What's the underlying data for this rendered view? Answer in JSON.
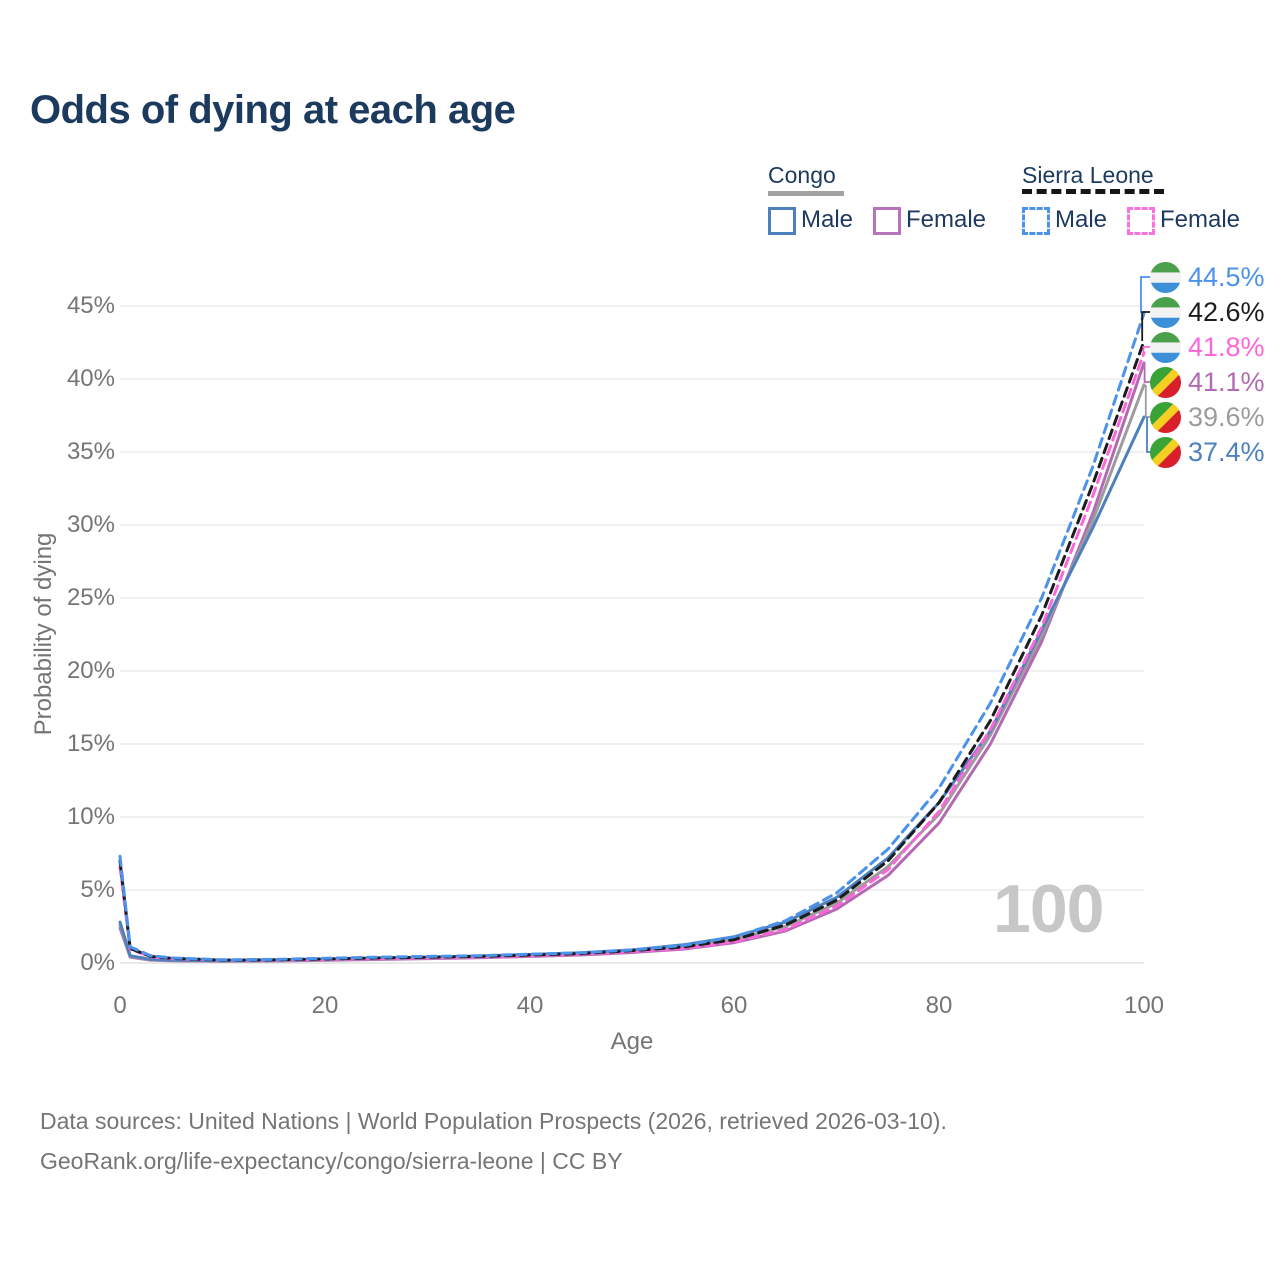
{
  "title": "Odds of dying at each age",
  "legend": {
    "groups": [
      {
        "label": "Congo",
        "underline_style": "solid",
        "underline_color": "#a2a2a2",
        "items": [
          {
            "label": "Male",
            "color": "#4d80bd",
            "dashed": false
          },
          {
            "label": "Female",
            "color": "#b973b9",
            "dashed": false
          }
        ]
      },
      {
        "label": "Sierra Leone",
        "underline_style": "dashed",
        "underline_color": "#161616",
        "items": [
          {
            "label": "Male",
            "color": "#4b93ea",
            "dashed": true
          },
          {
            "label": "Female",
            "color": "#fb71dd",
            "dashed": true
          }
        ]
      }
    ]
  },
  "axes": {
    "x_title": "Age",
    "y_title": "Probability of dying",
    "x_tick_labels": [
      "0",
      "20",
      "40",
      "60",
      "80",
      "100"
    ],
    "y_tick_labels": [
      "45%",
      "40%",
      "35%",
      "30%",
      "25%",
      "20%",
      "15%",
      "10%",
      "5%",
      "0%"
    ]
  },
  "watermark": "100",
  "end_labels": [
    {
      "value": "44.5%",
      "color": "#4b93ea",
      "flag": "sierra-leone",
      "series": "Sierra Leone Male"
    },
    {
      "value": "42.6%",
      "color": "#1c1c1c",
      "flag": "sierra-leone",
      "series": "Sierra Leone"
    },
    {
      "value": "41.8%",
      "color": "#fb66da",
      "flag": "sierra-leone",
      "series": "Sierra Leone Female"
    },
    {
      "value": "41.1%",
      "color": "#b36ab3",
      "flag": "congo",
      "series": "Congo Female"
    },
    {
      "value": "39.6%",
      "color": "#9c9c9c",
      "flag": "congo",
      "series": "Congo"
    },
    {
      "value": "37.4%",
      "color": "#4d80bd",
      "flag": "congo",
      "series": "Congo Male"
    }
  ],
  "flags": {
    "sierra-leone": {
      "layout": "horizontal-stripes",
      "colors": [
        "#4ba04b",
        "#f2f2f2",
        "#3d8fd8"
      ]
    },
    "congo": {
      "layout": "diagonal-stripes",
      "colors": [
        "#3aa335",
        "#f5d020",
        "#d7202c"
      ]
    }
  },
  "footer": {
    "line1": "Data sources: United Nations | World Population Prospects (2026, retrieved 2026-03-10).",
    "line2": "GeoRank.org/life-expectancy/congo/sierra-leone | CC BY"
  },
  "chart_data": {
    "type": "line",
    "title": "Odds of dying at each age",
    "xlabel": "Age",
    "ylabel": "Probability of dying",
    "xlim": [
      0,
      100
    ],
    "ylim_pct": [
      0,
      47
    ],
    "x_ticks": [
      0,
      20,
      40,
      60,
      80,
      100
    ],
    "y_ticks_pct": [
      0,
      5,
      10,
      15,
      20,
      25,
      30,
      35,
      40,
      45
    ],
    "grid": "horizontal",
    "legend_position": "top-right",
    "ages": [
      0,
      1,
      3,
      5,
      10,
      15,
      20,
      25,
      30,
      35,
      40,
      45,
      50,
      55,
      60,
      65,
      70,
      75,
      80,
      85,
      90,
      95,
      100
    ],
    "series": [
      {
        "name": "Sierra Leone Male",
        "color": "#4b93ea",
        "dash": true,
        "end_value_pct": 44.5,
        "values_pct": [
          7.3,
          1.1,
          0.5,
          0.35,
          0.22,
          0.25,
          0.32,
          0.4,
          0.45,
          0.5,
          0.6,
          0.7,
          0.9,
          1.2,
          1.8,
          2.9,
          4.8,
          7.8,
          12.0,
          17.8,
          25.0,
          34.0,
          44.5
        ]
      },
      {
        "name": "Sierra Leone",
        "color": "#1c1c1c",
        "dash": true,
        "end_value_pct": 42.6,
        "values_pct": [
          7.0,
          1.0,
          0.45,
          0.32,
          0.2,
          0.22,
          0.28,
          0.35,
          0.4,
          0.45,
          0.55,
          0.65,
          0.85,
          1.1,
          1.6,
          2.6,
          4.3,
          7.0,
          11.0,
          16.6,
          23.8,
          32.8,
          42.6
        ]
      },
      {
        "name": "Sierra Leone Female",
        "color": "#fb66da",
        "dash": true,
        "end_value_pct": 41.8,
        "values_pct": [
          6.6,
          0.95,
          0.42,
          0.3,
          0.19,
          0.2,
          0.25,
          0.3,
          0.36,
          0.42,
          0.5,
          0.6,
          0.78,
          1.0,
          1.45,
          2.3,
          3.9,
          6.4,
          10.4,
          16.0,
          23.0,
          32.0,
          41.8
        ]
      },
      {
        "name": "Congo Female",
        "color": "#b36ab3",
        "dash": false,
        "end_value_pct": 41.1,
        "values_pct": [
          2.4,
          0.4,
          0.2,
          0.16,
          0.12,
          0.14,
          0.19,
          0.24,
          0.3,
          0.36,
          0.45,
          0.55,
          0.72,
          0.95,
          1.4,
          2.2,
          3.7,
          6.0,
          9.6,
          15.0,
          22.0,
          30.8,
          41.1
        ]
      },
      {
        "name": "Congo",
        "color": "#9c9c9c",
        "dash": false,
        "end_value_pct": 39.6,
        "values_pct": [
          2.6,
          0.45,
          0.22,
          0.18,
          0.13,
          0.16,
          0.22,
          0.28,
          0.35,
          0.42,
          0.52,
          0.63,
          0.82,
          1.1,
          1.6,
          2.5,
          4.1,
          6.6,
          10.2,
          15.6,
          22.4,
          30.3,
          39.6
        ]
      },
      {
        "name": "Congo Male",
        "color": "#4d80bd",
        "dash": false,
        "end_value_pct": 37.4,
        "values_pct": [
          2.8,
          0.5,
          0.25,
          0.2,
          0.15,
          0.18,
          0.25,
          0.32,
          0.4,
          0.48,
          0.58,
          0.7,
          0.9,
          1.25,
          1.8,
          2.8,
          4.5,
          7.2,
          11.0,
          15.9,
          22.8,
          29.8,
          37.4
        ]
      }
    ]
  }
}
